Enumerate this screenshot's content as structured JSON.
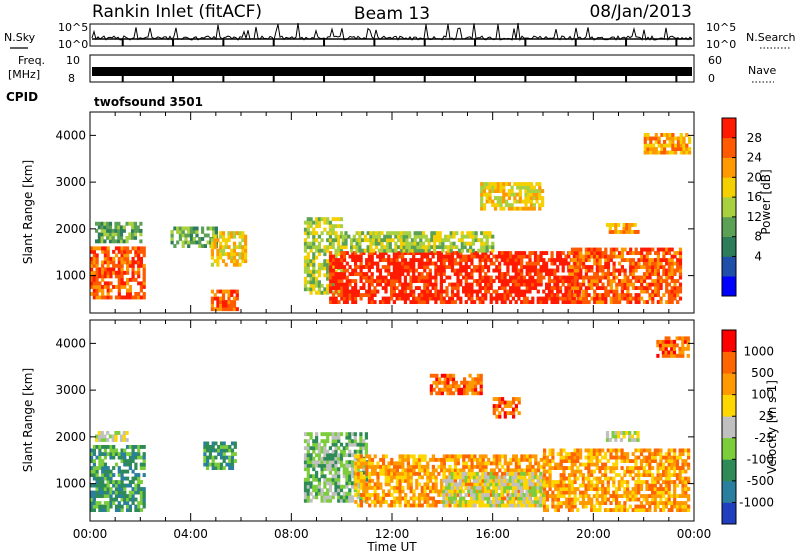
{
  "header": {
    "station": "Rankin Inlet (fitACF)",
    "beam": "Beam 13",
    "date": "08/Jan/2013"
  },
  "nsky_panel": {
    "left_label": "N.Sky",
    "left_ticks": [
      "10^5",
      "10^0"
    ],
    "right_label": "N.Search",
    "right_ticks": [
      "10^5",
      "10^0"
    ]
  },
  "freq_panel": {
    "left_label_top": "Freq.",
    "left_label_bottom": "[MHz]",
    "left_ticks": [
      "10",
      "8"
    ],
    "right_label": "Nave",
    "right_ticks": [
      "60",
      "0"
    ]
  },
  "cpid_panel": {
    "label": "CPID",
    "value": "twofsound 3501"
  },
  "chart_data": {
    "type": "heatmap",
    "xlabel": "Time UT",
    "x_ticks": [
      "00:00",
      "04:00",
      "08:00",
      "12:00",
      "16:00",
      "20:00",
      "00:00"
    ],
    "x_range_hours": [
      0,
      24
    ],
    "ylabel": "Slant Range [km]",
    "y_ticks": [
      1000,
      2000,
      3000,
      4000
    ],
    "ylim": [
      200,
      4500
    ],
    "panels": [
      {
        "name": "power",
        "colorbar_label": "Power [dB]",
        "colorbar_ticks": [
          "28",
          "24",
          "20",
          "16",
          "12",
          "8",
          "4"
        ],
        "colorbar_colors": [
          "#0000ff",
          "#1f4fa8",
          "#2e7d5a",
          "#5aa055",
          "#a8d040",
          "#f5d000",
          "#ff9900",
          "#ff5a00",
          "#ff1a00"
        ],
        "regions": [
          {
            "t0": 0.0,
            "t1": 2.2,
            "r0": 500,
            "r1": 1600,
            "level": 7
          },
          {
            "t0": 0.2,
            "t1": 2.0,
            "r0": 1700,
            "r1": 2100,
            "level": 3
          },
          {
            "t0": 3.2,
            "t1": 5.0,
            "r0": 1600,
            "r1": 2000,
            "level": 3
          },
          {
            "t0": 4.8,
            "t1": 6.2,
            "r0": 1200,
            "r1": 1900,
            "level": 5
          },
          {
            "t0": 4.8,
            "t1": 5.9,
            "r0": 250,
            "r1": 700,
            "level": 7
          },
          {
            "t0": 8.5,
            "t1": 10.0,
            "r0": 600,
            "r1": 2200,
            "level": 4
          },
          {
            "t0": 9.5,
            "t1": 19.5,
            "r0": 400,
            "r1": 1500,
            "level": 8
          },
          {
            "t0": 10.0,
            "t1": 16.0,
            "r0": 1500,
            "r1": 1900,
            "level": 4
          },
          {
            "t0": 15.5,
            "t1": 18.0,
            "r0": 2400,
            "r1": 3000,
            "level": 5
          },
          {
            "t0": 19.0,
            "t1": 23.5,
            "r0": 400,
            "r1": 1600,
            "level": 7
          },
          {
            "t0": 20.5,
            "t1": 21.8,
            "r0": 1900,
            "r1": 2100,
            "level": 6
          },
          {
            "t0": 22.0,
            "t1": 23.8,
            "r0": 3600,
            "r1": 4000,
            "level": 6
          }
        ]
      },
      {
        "name": "velocity",
        "colorbar_label": "Velocity [m s-1]",
        "colorbar_ticks": [
          "1000",
          "500",
          "100",
          "25",
          "-25",
          "-100",
          "-500",
          "-1000"
        ],
        "colorbar_colors": [
          "#1f3fbf",
          "#2a7f9f",
          "#2e8b57",
          "#7ccd3c",
          "#c0c0c0",
          "#ffd700",
          "#ff9900",
          "#ff6600",
          "#ff0000"
        ],
        "regions": [
          {
            "t0": 0.0,
            "t1": 2.2,
            "r0": 400,
            "r1": 1800,
            "level": 2
          },
          {
            "t0": 0.2,
            "t1": 1.5,
            "r0": 1900,
            "r1": 2100,
            "level": 4
          },
          {
            "t0": 4.5,
            "t1": 5.8,
            "r0": 1300,
            "r1": 1900,
            "level": 2
          },
          {
            "t0": 8.5,
            "t1": 11.0,
            "r0": 600,
            "r1": 2100,
            "level": 3
          },
          {
            "t0": 10.5,
            "t1": 18.0,
            "r0": 500,
            "r1": 1600,
            "level": 6
          },
          {
            "t0": 14.0,
            "t1": 18.0,
            "r0": 500,
            "r1": 1200,
            "level": 4
          },
          {
            "t0": 18.0,
            "t1": 23.8,
            "r0": 400,
            "r1": 1700,
            "level": 6
          },
          {
            "t0": 13.5,
            "t1": 15.5,
            "r0": 2900,
            "r1": 3300,
            "level": 7
          },
          {
            "t0": 16.0,
            "t1": 17.0,
            "r0": 2400,
            "r1": 2800,
            "level": 7
          },
          {
            "t0": 20.5,
            "t1": 21.8,
            "r0": 1900,
            "r1": 2100,
            "level": 4
          },
          {
            "t0": 22.5,
            "t1": 23.8,
            "r0": 3700,
            "r1": 4100,
            "level": 7
          }
        ]
      }
    ]
  }
}
